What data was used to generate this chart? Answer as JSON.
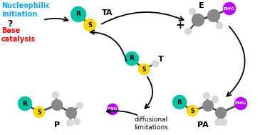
{
  "background_color": "#ffffff",
  "text_nucleophilic": "Nucleophilic\ninitiation",
  "text_question": "?",
  "text_base": "Base\ncatalysis",
  "text_TA": "TA",
  "text_T": "T",
  "text_E": "E",
  "text_P": "P",
  "text_PA": "PA",
  "text_plus": "+",
  "text_diffusional": "diffusional\nlimitations",
  "color_R": "#00C5A5",
  "color_S": "#FFD700",
  "color_EWG": "#BB00FF",
  "color_C": "#888888",
  "color_H": "#D8D8D8",
  "color_nucleophilic": "#00AAFF",
  "color_base": "#FF0000",
  "color_black": "#000000",
  "color_bond": "#444444"
}
